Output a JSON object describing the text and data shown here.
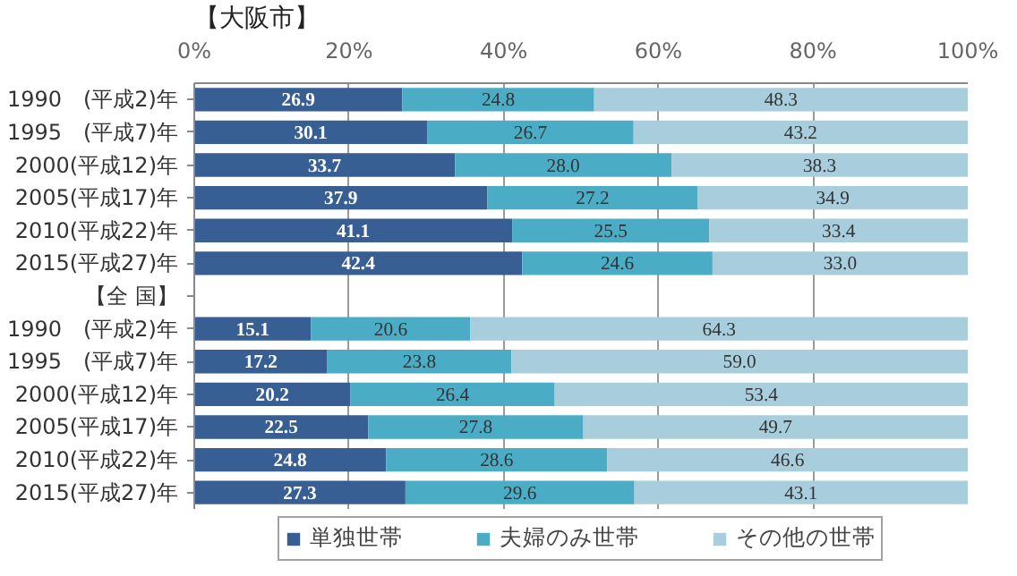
{
  "chart_data": {
    "type": "bar",
    "orientation": "horizontal",
    "stacked": true,
    "title": "【大阪市】",
    "categories": [
      "1990　(平成2)年",
      "1995　(平成7)年",
      "2000(平成12)年",
      "2005(平成17)年",
      "2010(平成22)年",
      "2015(平成27)年",
      "【全 国】",
      "1990　(平成2)年",
      "1995　(平成7)年",
      "2000(平成12)年",
      "2005(平成17)年",
      "2010(平成22)年",
      "2015(平成27)年"
    ],
    "series": [
      {
        "name": "単独世帯",
        "color": "#375f93",
        "values": [
          26.9,
          30.1,
          33.7,
          37.9,
          41.1,
          42.4,
          null,
          15.1,
          17.2,
          20.2,
          22.5,
          24.8,
          27.3
        ],
        "value_labels": [
          "26.9",
          "30.1",
          "33.7",
          "37.9",
          "41.1",
          "42.4",
          null,
          "15.1",
          "17.2",
          "20.2",
          "22.5",
          "24.8",
          "27.3"
        ]
      },
      {
        "name": "夫婦のみ世帯",
        "color": "#4bacc6",
        "values": [
          24.8,
          26.7,
          28.0,
          27.2,
          25.5,
          24.6,
          null,
          20.6,
          23.8,
          26.4,
          27.8,
          28.6,
          29.6
        ],
        "value_labels": [
          "24.8",
          "26.7",
          "28.0",
          "27.2",
          "25.5",
          "24.6",
          null,
          "20.6",
          "23.8",
          "26.4",
          "27.8",
          "28.6",
          "29.6"
        ]
      },
      {
        "name": "その他の世帯",
        "color": "#a8cedd",
        "values": [
          48.3,
          43.2,
          38.3,
          34.9,
          33.4,
          33.0,
          null,
          64.3,
          59.0,
          53.4,
          49.7,
          46.6,
          43.1
        ],
        "value_labels": [
          "48.3",
          "43.2",
          "38.3",
          "34.9",
          "33.4",
          "33.0",
          null,
          "64.3",
          "59.0",
          "53.4",
          "49.7",
          "46.6",
          "43.1"
        ]
      }
    ],
    "xlim": [
      0,
      100
    ],
    "xticks": [
      {
        "value": 0,
        "label": "0%"
      },
      {
        "value": 20,
        "label": "20%"
      },
      {
        "value": 40,
        "label": "40%"
      },
      {
        "value": 60,
        "label": "60%"
      },
      {
        "value": 80,
        "label": "80%"
      },
      {
        "value": 100,
        "label": "100%"
      }
    ],
    "grid": "x",
    "legend": "bottom"
  }
}
